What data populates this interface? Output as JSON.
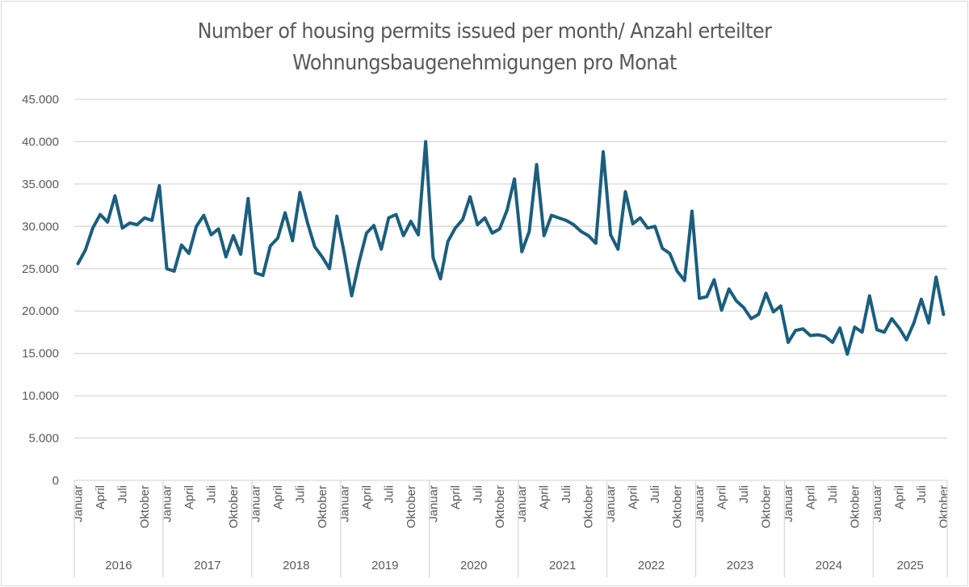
{
  "chart_data": {
    "type": "line",
    "title": "Number of housing permits issued per month/ Anzahl erteilter Wohnungsbaugenehmigungen pro Monat",
    "title_lines": [
      "Number of housing permits issued per month/ Anzahl erteilter",
      "Wohnungsbaugenehmigungen pro Monat"
    ],
    "xlabel": "",
    "ylabel": "",
    "ylim": [
      0,
      45000
    ],
    "yticks": [
      0,
      5000,
      10000,
      15000,
      20000,
      25000,
      30000,
      35000,
      40000,
      45000
    ],
    "ytick_labels": [
      "0",
      "5.000",
      "10.000",
      "15.000",
      "20.000",
      "25.000",
      "30.000",
      "35.000",
      "40.000",
      "45.000"
    ],
    "grid": true,
    "legend": "none",
    "line_color": "#1b5e7e",
    "month_labels_shown": [
      "Januar",
      "April",
      "Juli",
      "Oktober"
    ],
    "years": [
      {
        "year": "2016",
        "values": [
          25600,
          27200,
          29800,
          31400,
          30500,
          33600,
          29800,
          30400,
          30200,
          31000,
          30700,
          34800
        ]
      },
      {
        "year": "2017",
        "values": [
          25000,
          24700,
          27800,
          26800,
          30000,
          31300,
          29000,
          29700,
          26400,
          28900,
          26700,
          33300
        ]
      },
      {
        "year": "2018",
        "values": [
          24500,
          24200,
          27700,
          28600,
          31600,
          28300,
          34000,
          30500,
          27600,
          26400,
          25000,
          31200
        ]
      },
      {
        "year": "2019",
        "values": [
          26800,
          21800,
          25800,
          29200,
          30100,
          27300,
          31000,
          31400,
          28900,
          30600,
          29000,
          40000
        ]
      },
      {
        "year": "2020",
        "values": [
          26300,
          23800,
          28200,
          29800,
          30800,
          33500,
          30200,
          31000,
          29200,
          29700,
          31900,
          35600
        ]
      },
      {
        "year": "2021",
        "values": [
          27000,
          29400,
          37300,
          28900,
          31300,
          31000,
          30700,
          30200,
          29400,
          28900,
          28000,
          38800
        ]
      },
      {
        "year": "2022",
        "values": [
          29000,
          27300,
          34100,
          30300,
          31000,
          29800,
          30000,
          27400,
          26800,
          24700,
          23600,
          31800
        ]
      },
      {
        "year": "2023",
        "values": [
          21500,
          21700,
          23700,
          20100,
          22600,
          21200,
          20400,
          19100,
          19600,
          22100,
          19900,
          20600
        ]
      },
      {
        "year": "2024",
        "values": [
          16300,
          17700,
          17900,
          17100,
          17200,
          17000,
          16300,
          18000,
          14900,
          18100,
          17500,
          21800
        ]
      },
      {
        "year": "2025",
        "values": [
          17800,
          17500,
          19100,
          18000,
          16600,
          18600,
          21400,
          18600,
          24000,
          19600
        ]
      }
    ]
  }
}
